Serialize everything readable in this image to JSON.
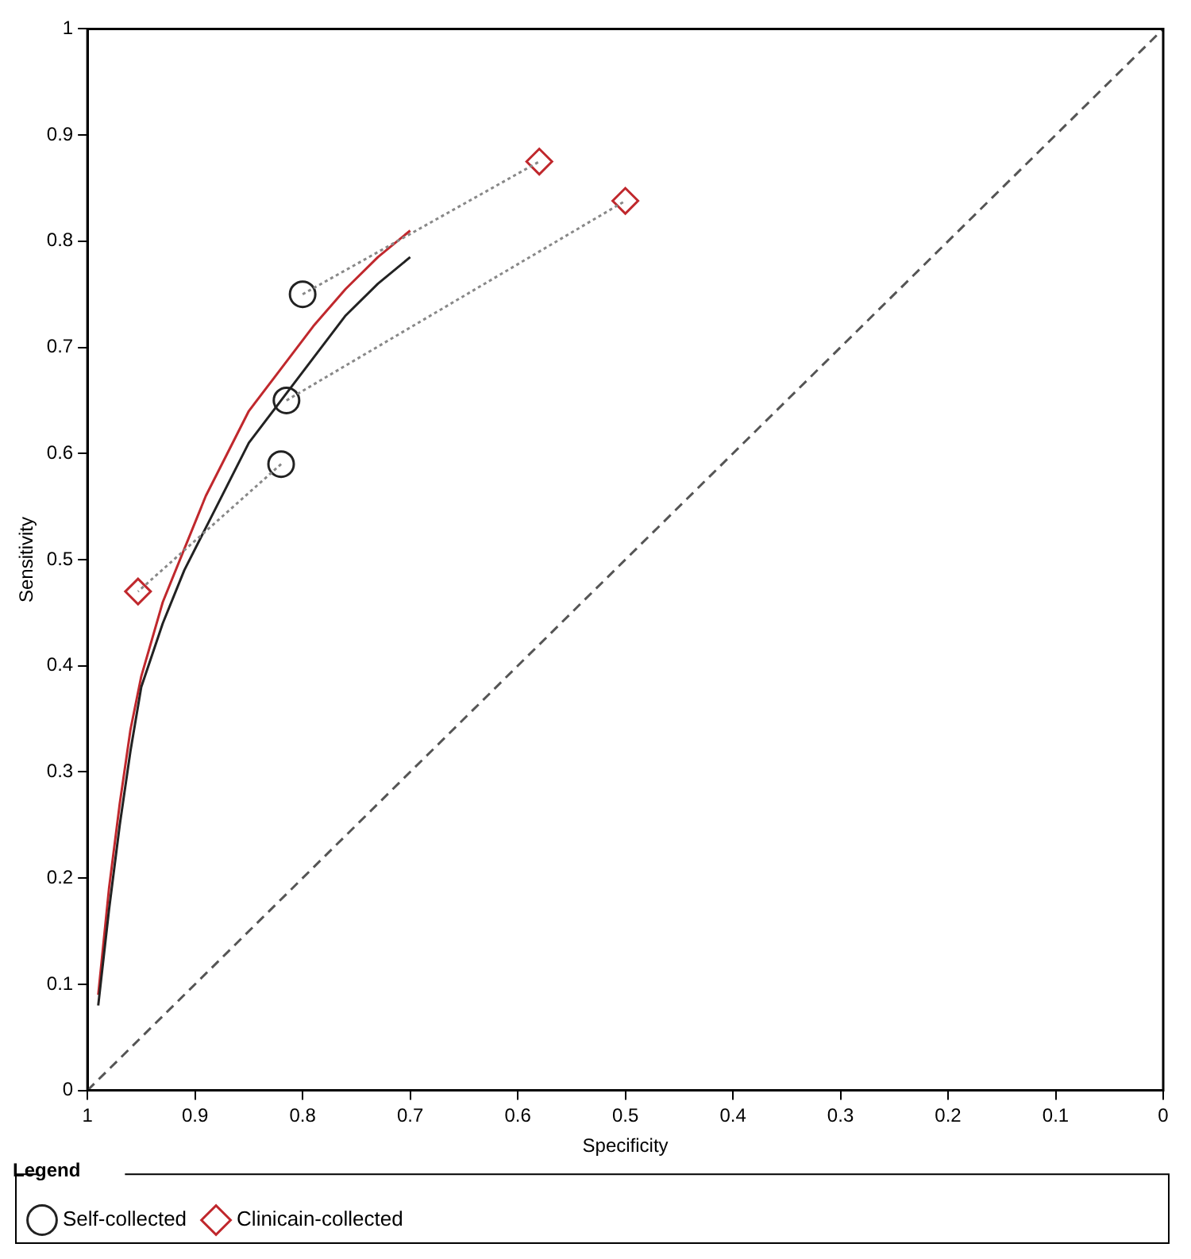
{
  "chart_data": {
    "type": "scatter",
    "xlabel": "Specificity",
    "ylabel": "Sensitivity",
    "legend_title": "Legend",
    "legend": "bottom",
    "grid": false,
    "xlim": [
      1,
      0
    ],
    "xticks": [
      1,
      0.9,
      0.8,
      0.7,
      0.6,
      0.5,
      0.4,
      0.3,
      0.2,
      0.1,
      0
    ],
    "ylim": [
      0,
      1
    ],
    "yticks": [
      0,
      0.1,
      0.2,
      0.3,
      0.4,
      0.5,
      0.6,
      0.7,
      0.8,
      0.9,
      1
    ],
    "series": [
      {
        "type": "line",
        "color": "#555555",
        "line_style": "dashed",
        "marker": "none",
        "x": [
          1,
          0
        ],
        "values": [
          0,
          1
        ]
      },
      {
        "type": "line",
        "color": "#888888",
        "line_style": "dotted",
        "marker": "none",
        "x": [
          0.8,
          0.58
        ],
        "values": [
          0.75,
          0.875
        ]
      },
      {
        "type": "line",
        "color": "#888888",
        "line_style": "dotted",
        "marker": "none",
        "x": [
          0.815,
          0.5
        ],
        "values": [
          0.65,
          0.838
        ]
      },
      {
        "type": "line",
        "color": "#888888",
        "line_style": "dotted",
        "marker": "none",
        "x": [
          0.82,
          0.953
        ],
        "values": [
          0.59,
          0.47
        ]
      },
      {
        "type": "line",
        "color": "#222222",
        "line_style": "solid",
        "marker": "none",
        "x": [
          0.99,
          0.98,
          0.97,
          0.96,
          0.95,
          0.93,
          0.91,
          0.89,
          0.87,
          0.85,
          0.82,
          0.79,
          0.76,
          0.73,
          0.7
        ],
        "values": [
          0.08,
          0.17,
          0.25,
          0.32,
          0.38,
          0.44,
          0.49,
          0.53,
          0.57,
          0.61,
          0.65,
          0.69,
          0.73,
          0.76,
          0.785
        ]
      },
      {
        "type": "line",
        "color": "#c0282d",
        "line_style": "solid",
        "marker": "none",
        "x": [
          0.99,
          0.98,
          0.97,
          0.96,
          0.95,
          0.93,
          0.91,
          0.89,
          0.87,
          0.85,
          0.82,
          0.79,
          0.76,
          0.73,
          0.7
        ],
        "values": [
          0.09,
          0.19,
          0.27,
          0.34,
          0.39,
          0.46,
          0.51,
          0.56,
          0.6,
          0.64,
          0.68,
          0.72,
          0.755,
          0.785,
          0.81
        ]
      },
      {
        "type": "scatter",
        "name": "Self-collected",
        "color": "#222222",
        "marker": "circle",
        "x": [
          0.8,
          0.815,
          0.82
        ],
        "values": [
          0.75,
          0.65,
          0.59
        ]
      },
      {
        "type": "scatter",
        "name": "Clinicain-collected",
        "color": "#c0282d",
        "marker": "diamond",
        "x": [
          0.58,
          0.5,
          0.953
        ],
        "values": [
          0.875,
          0.838,
          0.47
        ]
      }
    ]
  }
}
